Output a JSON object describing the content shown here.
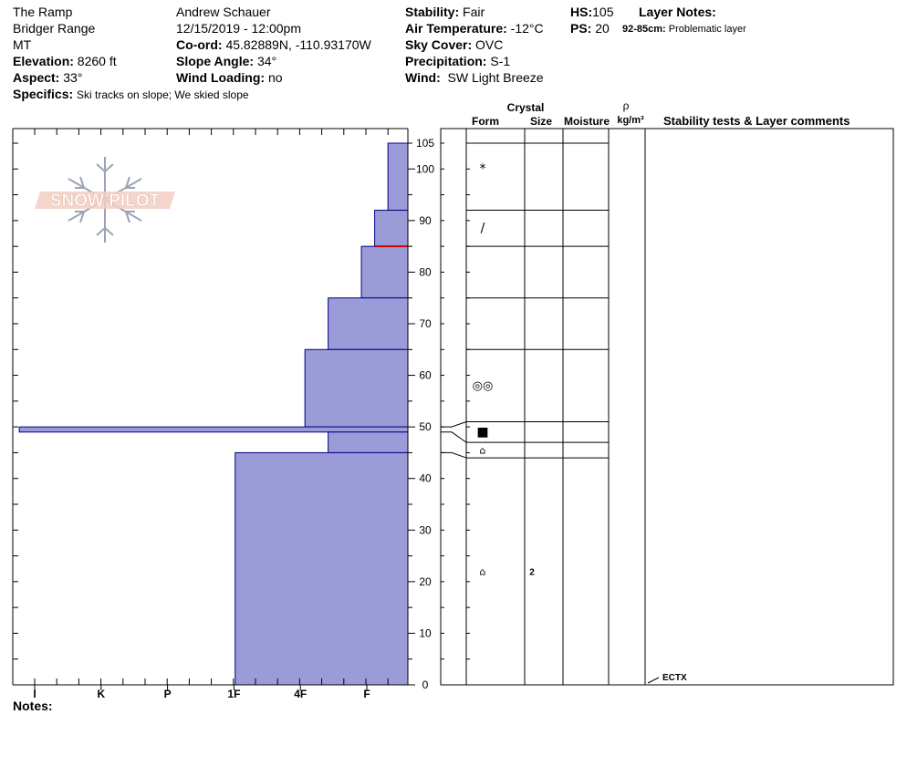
{
  "site": {
    "location": "The Ramp",
    "range": "Bridger Range",
    "state": "MT",
    "elevation_label": "Elevation:",
    "elevation": "8260 ft",
    "aspect_label": "Aspect:",
    "aspect": "33°",
    "specifics_label": "Specifics:",
    "specifics": "Ski tracks on slope; We skied slope"
  },
  "observer": {
    "name": "Andrew Schauer",
    "datetime": "12/15/2019 - 12:00pm",
    "coord_label": "Co-ord:",
    "coord": "45.82889N, -110.93170W",
    "slope_label": "Slope Angle:",
    "slope": "34°",
    "wind_loading_label": "Wind Loading:",
    "wind_loading": "no"
  },
  "conditions": {
    "stability_label": "Stability:",
    "stability": "Fair",
    "air_temp_label": "Air Temperature:",
    "air_temp": "-12°C",
    "sky_label": "Sky Cover:",
    "sky": "OVC",
    "precip_label": "Precipitation:",
    "precip": "S-1",
    "wind_label": "Wind:",
    "wind": "SW Light Breeze"
  },
  "summary": {
    "hs_label": "HS:",
    "hs": "105",
    "ps_label": "PS:",
    "ps": "20",
    "layer_notes_label": "Layer Notes:",
    "layer_note_range": "92-85cm:",
    "layer_note_text": "Problematic layer"
  },
  "notes_label": "Notes:",
  "logo_text": "SNOW PILOT",
  "colors": {
    "bar_fill": "#9b9bd7",
    "bar_stroke": "#00008b",
    "problem_line": "#cc0000",
    "logo": "#e8b8a8",
    "flake": "#9aa4b4"
  },
  "chart_data": {
    "type": "bar",
    "title": "",
    "ylabel": "",
    "xlabel": "",
    "ylim": [
      0,
      105
    ],
    "y_ticks": [
      0,
      10,
      20,
      30,
      40,
      50,
      60,
      70,
      80,
      90,
      100,
      105
    ],
    "hardness_scale": [
      "I",
      "K",
      "P",
      "1F",
      "4F",
      "F"
    ],
    "hardness_layers": [
      {
        "top": 105,
        "bottom": 92,
        "hardness": 0.3
      },
      {
        "top": 92,
        "bottom": 85,
        "hardness": 0.5
      },
      {
        "top": 85,
        "bottom": 75,
        "hardness": 0.7
      },
      {
        "top": 75,
        "bottom": 65,
        "hardness": 1.2
      },
      {
        "top": 65,
        "bottom": 50,
        "hardness": 1.55
      },
      {
        "top": 50,
        "bottom": 49,
        "hardness": 5.85
      },
      {
        "top": 49,
        "bottom": 45,
        "hardness": 1.2
      },
      {
        "top": 45,
        "bottom": 0,
        "hardness": 2.6
      }
    ],
    "problem_layer": {
      "depth": 85
    },
    "table_headers": {
      "crystal": "Crystal",
      "form": "Form",
      "size": "Size",
      "moisture": "Moisture",
      "rho": "ρ",
      "density_unit": "kg/m³",
      "comments": "Stability tests & Layer comments"
    },
    "layer_boundaries": [
      105,
      92,
      85,
      75,
      65,
      51,
      47,
      44,
      0
    ],
    "layer_rows": [
      {
        "mid": 100,
        "form": "*",
        "size": ""
      },
      {
        "mid": 88.5,
        "form": "/",
        "size": ""
      },
      {
        "mid": 58,
        "form": "◎◎",
        "size": ""
      },
      {
        "mid": 49,
        "form": "■",
        "size": ""
      },
      {
        "mid": 45.5,
        "form": "⌂",
        "size": ""
      },
      {
        "mid": 22,
        "form": "⌂",
        "size": "2"
      }
    ],
    "stability_tests": [
      {
        "depth": 0,
        "label": "ECTX"
      }
    ]
  }
}
